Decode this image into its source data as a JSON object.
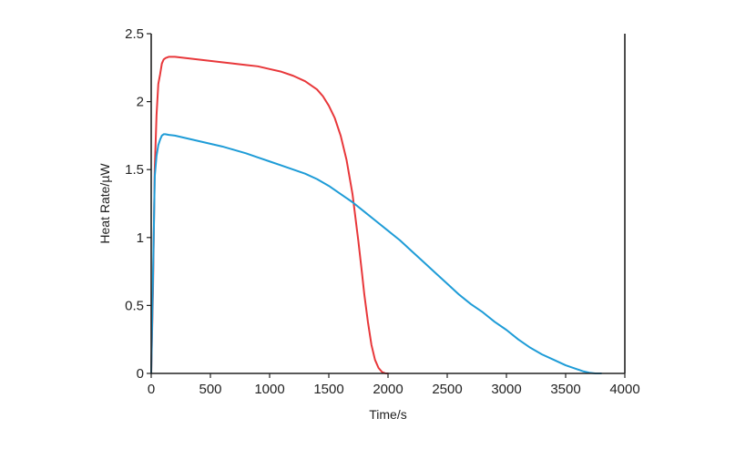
{
  "chart_data": {
    "type": "line",
    "title": "",
    "xlabel": "Time/s",
    "ylabel": "Heat Rate/µW",
    "xlim": [
      0,
      4000
    ],
    "ylim": [
      0,
      2.5
    ],
    "xticks": [
      0,
      500,
      1000,
      1500,
      2000,
      2500,
      3000,
      3500,
      4000
    ],
    "xtick_labels": [
      "0",
      "500",
      "1000",
      "1500",
      "2000",
      "2500",
      "3000",
      "3500",
      "4000"
    ],
    "yticks": [
      0,
      0.5,
      1,
      1.5,
      2,
      2.5
    ],
    "ytick_labels": [
      "0",
      "0.5",
      "1",
      "1.5",
      "2",
      "2.5"
    ],
    "grid": false,
    "legend": "none",
    "series": [
      {
        "color": "#e8373a",
        "x": [
          0,
          15,
          30,
          45,
          60,
          75,
          90,
          105,
          120,
          150,
          200,
          300,
          400,
          500,
          600,
          700,
          800,
          900,
          1000,
          1100,
          1200,
          1300,
          1400,
          1450,
          1500,
          1550,
          1600,
          1650,
          1700,
          1750,
          1780,
          1800,
          1830,
          1860,
          1890,
          1920,
          1950,
          1980,
          2000
        ],
        "y": [
          0,
          0.6,
          1.5,
          1.9,
          2.13,
          2.2,
          2.28,
          2.31,
          2.32,
          2.33,
          2.33,
          2.32,
          2.31,
          2.3,
          2.29,
          2.28,
          2.27,
          2.26,
          2.24,
          2.22,
          2.19,
          2.15,
          2.09,
          2.04,
          1.97,
          1.88,
          1.75,
          1.57,
          1.32,
          0.97,
          0.74,
          0.58,
          0.38,
          0.21,
          0.1,
          0.04,
          0.01,
          0,
          0
        ]
      },
      {
        "color": "#1e9cd7",
        "x": [
          0,
          15,
          30,
          45,
          60,
          75,
          90,
          105,
          120,
          150,
          200,
          300,
          400,
          500,
          600,
          700,
          800,
          900,
          1000,
          1100,
          1200,
          1300,
          1400,
          1500,
          1600,
          1700,
          1800,
          1900,
          2000,
          2100,
          2200,
          2300,
          2400,
          2500,
          2600,
          2700,
          2800,
          2900,
          3000,
          3100,
          3200,
          3300,
          3400,
          3500,
          3600,
          3650,
          3700,
          3750,
          3800
        ],
        "y": [
          0,
          0.7,
          1.45,
          1.6,
          1.68,
          1.72,
          1.75,
          1.76,
          1.76,
          1.755,
          1.75,
          1.73,
          1.71,
          1.69,
          1.67,
          1.645,
          1.62,
          1.59,
          1.56,
          1.53,
          1.5,
          1.47,
          1.43,
          1.38,
          1.32,
          1.26,
          1.19,
          1.12,
          1.05,
          0.98,
          0.9,
          0.82,
          0.74,
          0.66,
          0.58,
          0.51,
          0.45,
          0.38,
          0.32,
          0.25,
          0.19,
          0.14,
          0.1,
          0.06,
          0.03,
          0.015,
          0.005,
          0,
          0
        ]
      }
    ]
  }
}
